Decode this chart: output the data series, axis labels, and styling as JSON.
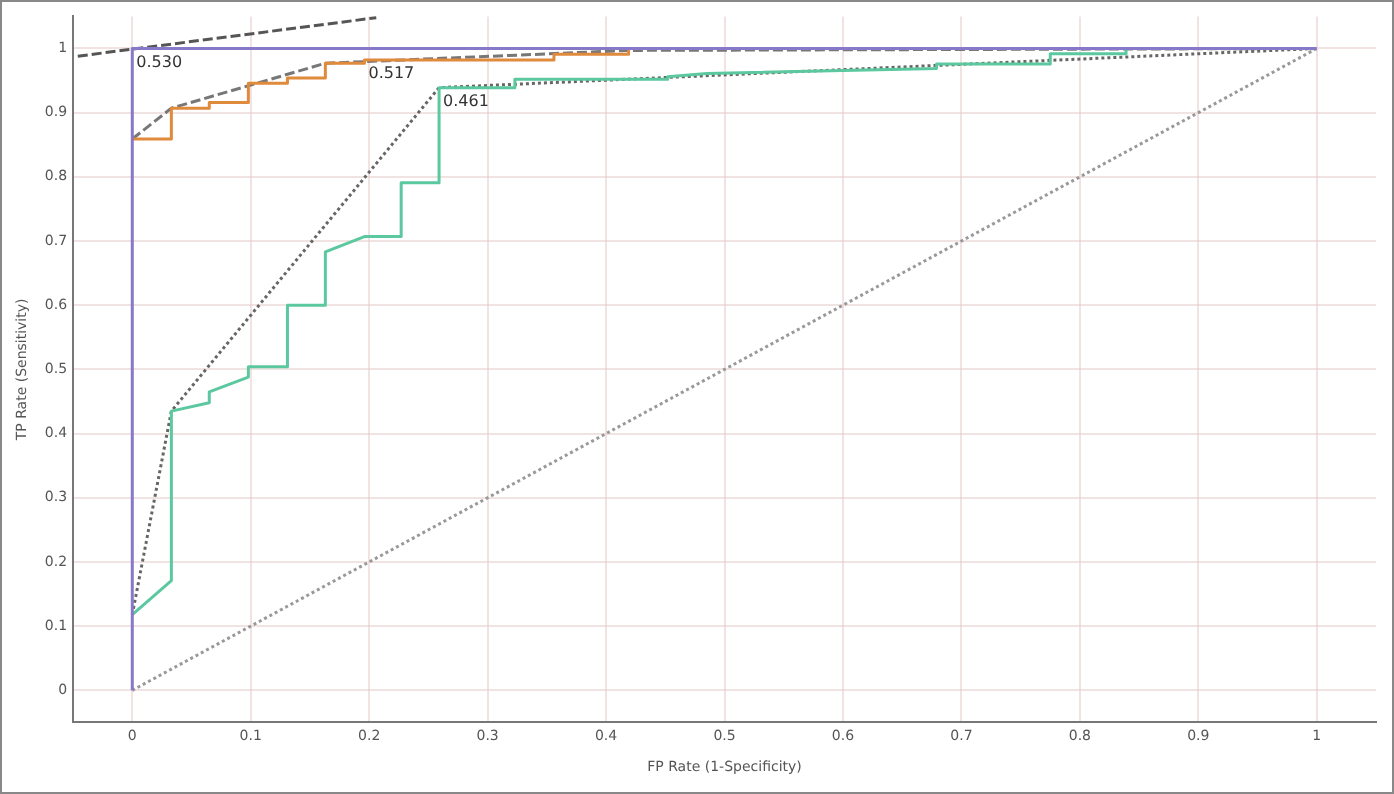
{
  "chart_data": {
    "type": "line",
    "xlabel": "FP Rate (1-Specificity)",
    "ylabel": "TP Rate (Sensitivity)",
    "xlim": [
      -0.05,
      1.05
    ],
    "ylim": [
      -0.05,
      1.05
    ],
    "xticks": [
      0,
      0.1,
      0.2,
      0.3,
      0.4,
      0.5,
      0.6,
      0.7,
      0.8,
      0.9,
      1
    ],
    "yticks": [
      0,
      0.1,
      0.2,
      0.3,
      0.4,
      0.5,
      0.6,
      0.7,
      0.8,
      0.9,
      1
    ],
    "grid": true,
    "legend": false,
    "marker": "none",
    "series": [
      {
        "color": "#8878c8",
        "line_style": "solid",
        "x": [
          0,
          0,
          1
        ],
        "values": [
          0,
          1,
          1
        ]
      },
      {
        "color": "#999999",
        "line_style": "dotted",
        "x": [
          0,
          1
        ],
        "values": [
          0,
          1
        ]
      },
      {
        "color": "#555555",
        "line_style": "dashed",
        "x": [
          -0.046,
          0.206
        ],
        "values": [
          0.988,
          1.048
        ]
      },
      {
        "color": "#e08a3c",
        "line_style": "solid",
        "x": [
          0,
          0.033,
          0.033,
          0.065,
          0.065,
          0.098,
          0.098,
          0.131,
          0.131,
          0.163,
          0.163,
          0.196,
          0.196,
          0.356,
          0.356,
          0.419,
          0.419
        ],
        "values": [
          0.859,
          0.859,
          0.907,
          0.907,
          0.916,
          0.916,
          0.946,
          0.946,
          0.954,
          0.954,
          0.977,
          0.977,
          0.982,
          0.982,
          0.991,
          0.991,
          1
        ]
      },
      {
        "color": "#5cc8a0",
        "line_style": "solid",
        "x": [
          0,
          0.033,
          0.033,
          0.065,
          0.065,
          0.098,
          0.098,
          0.131,
          0.131,
          0.163,
          0.163,
          0.196,
          0.227,
          0.227,
          0.259,
          0.259,
          0.323,
          0.323,
          0.452,
          0.452,
          0.485,
          0.485,
          0.679,
          0.679,
          0.775,
          0.775,
          0.839,
          0.839
        ],
        "values": [
          0.118,
          0.171,
          0.435,
          0.448,
          0.465,
          0.488,
          0.504,
          0.504,
          0.6,
          0.6,
          0.683,
          0.707,
          0.707,
          0.791,
          0.791,
          0.939,
          0.939,
          0.952,
          0.952,
          0.956,
          0.961,
          0.961,
          0.969,
          0.976,
          0.976,
          0.992,
          0.992,
          1
        ]
      },
      {
        "color": "#777777",
        "line_style": "dashed",
        "x": [
          0,
          0.033,
          0.163,
          0.419,
          1
        ],
        "values": [
          0.859,
          0.907,
          0.977,
          0.997,
          1
        ]
      },
      {
        "color": "#666666",
        "line_style": "dotted",
        "x": [
          0,
          0.033,
          0.259,
          1
        ],
        "values": [
          0.118,
          0.435,
          0.939,
          1
        ]
      }
    ],
    "annotations": [
      {
        "text": "0.530",
        "x": 0,
        "y": 1
      },
      {
        "text": "0.517",
        "x": 0.196,
        "y": 0.982
      },
      {
        "text": "0.461",
        "x": 0.259,
        "y": 0.939
      }
    ]
  }
}
